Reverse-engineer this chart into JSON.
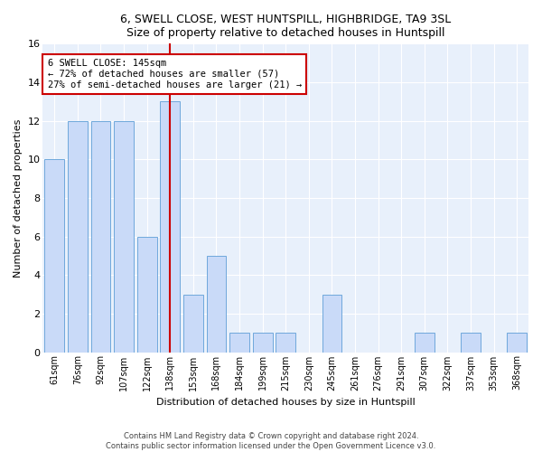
{
  "title1": "6, SWELL CLOSE, WEST HUNTSPILL, HIGHBRIDGE, TA9 3SL",
  "title2": "Size of property relative to detached houses in Huntspill",
  "xlabel": "Distribution of detached houses by size in Huntspill",
  "ylabel": "Number of detached properties",
  "categories": [
    "61sqm",
    "76sqm",
    "92sqm",
    "107sqm",
    "122sqm",
    "138sqm",
    "153sqm",
    "168sqm",
    "184sqm",
    "199sqm",
    "215sqm",
    "230sqm",
    "245sqm",
    "261sqm",
    "276sqm",
    "291sqm",
    "307sqm",
    "322sqm",
    "337sqm",
    "353sqm",
    "368sqm"
  ],
  "values": [
    10,
    12,
    12,
    12,
    6,
    13,
    3,
    5,
    1,
    1,
    1,
    0,
    3,
    0,
    0,
    0,
    1,
    0,
    1,
    0,
    1
  ],
  "highlight_index": 5,
  "bar_color": "#c9daf8",
  "bar_edge_color": "#6fa8dc",
  "highlight_line_color": "#cc0000",
  "ylim": [
    0,
    16
  ],
  "yticks": [
    0,
    2,
    4,
    6,
    8,
    10,
    12,
    14,
    16
  ],
  "annotation_text": "6 SWELL CLOSE: 145sqm\n← 72% of detached houses are smaller (57)\n27% of semi-detached houses are larger (21) →",
  "footnote": "Contains HM Land Registry data © Crown copyright and database right 2024.\nContains public sector information licensed under the Open Government Licence v3.0.",
  "bg_color": "#ffffff",
  "plot_bg_color": "#e8f0fb",
  "grid_color": "#ffffff",
  "annotation_box_color": "#ffffff",
  "annotation_box_edge": "#cc0000"
}
